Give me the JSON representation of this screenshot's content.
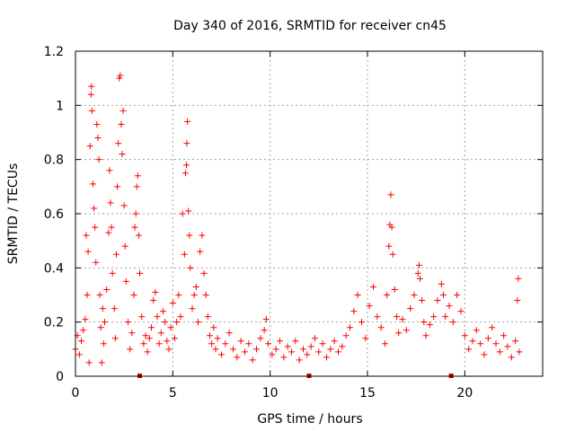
{
  "chart_data": {
    "type": "scatter",
    "title": "Day 340 of 2016, SRMTID for receiver cn45",
    "xlabel": "GPS time / hours",
    "ylabel": "SRMTID / TECUs",
    "xlim": [
      0,
      24
    ],
    "ylim": [
      0,
      1.2
    ],
    "xticks": [
      0,
      5,
      10,
      15,
      20
    ],
    "xtick_labels": [
      "0",
      "5",
      "10",
      "15",
      "20"
    ],
    "yticks": [
      0,
      0.2,
      0.4,
      0.6,
      0.8,
      1.0,
      1.2
    ],
    "ytick_labels": [
      "0",
      "0.2",
      "0.4",
      "0.6",
      "0.8",
      "1",
      "1.2"
    ],
    "grid": true,
    "marker": "+",
    "colors": {
      "points": "#ff0000",
      "gaps": "#cc0000",
      "grid": "#a0a0a0",
      "axis": "#000000"
    },
    "gap_markers_x": [
      3.3,
      12.0,
      19.3
    ],
    "series": [
      {
        "name": "cn45",
        "points": [
          [
            0.0,
            0.1
          ],
          [
            0.1,
            0.15
          ],
          [
            0.2,
            0.08
          ],
          [
            0.3,
            0.13
          ],
          [
            0.4,
            0.17
          ],
          [
            0.5,
            0.21
          ],
          [
            0.55,
            0.52
          ],
          [
            0.6,
            0.3
          ],
          [
            0.65,
            0.46
          ],
          [
            0.7,
            0.05
          ],
          [
            0.75,
            0.85
          ],
          [
            0.8,
            1.04
          ],
          [
            0.82,
            1.07
          ],
          [
            0.85,
            0.98
          ],
          [
            0.9,
            0.71
          ],
          [
            0.95,
            0.62
          ],
          [
            1.0,
            0.55
          ],
          [
            1.05,
            0.42
          ],
          [
            1.1,
            0.93
          ],
          [
            1.15,
            0.88
          ],
          [
            1.2,
            0.8
          ],
          [
            1.25,
            0.3
          ],
          [
            1.3,
            0.18
          ],
          [
            1.35,
            0.05
          ],
          [
            1.4,
            0.25
          ],
          [
            1.45,
            0.12
          ],
          [
            1.5,
            0.2
          ],
          [
            1.6,
            0.32
          ],
          [
            1.7,
            0.53
          ],
          [
            1.75,
            0.76
          ],
          [
            1.8,
            0.64
          ],
          [
            1.85,
            0.55
          ],
          [
            1.9,
            0.38
          ],
          [
            2.0,
            0.25
          ],
          [
            2.05,
            0.14
          ],
          [
            2.1,
            0.45
          ],
          [
            2.15,
            0.7
          ],
          [
            2.2,
            0.86
          ],
          [
            2.25,
            1.1
          ],
          [
            2.3,
            1.11
          ],
          [
            2.35,
            0.93
          ],
          [
            2.4,
            0.82
          ],
          [
            2.45,
            0.98
          ],
          [
            2.5,
            0.63
          ],
          [
            2.55,
            0.48
          ],
          [
            2.6,
            0.35
          ],
          [
            2.7,
            0.2
          ],
          [
            2.8,
            0.1
          ],
          [
            2.9,
            0.16
          ],
          [
            3.0,
            0.3
          ],
          [
            3.05,
            0.55
          ],
          [
            3.1,
            0.6
          ],
          [
            3.15,
            0.7
          ],
          [
            3.2,
            0.74
          ],
          [
            3.25,
            0.52
          ],
          [
            3.3,
            0.38
          ],
          [
            3.4,
            0.22
          ],
          [
            3.5,
            0.12
          ],
          [
            3.6,
            0.15
          ],
          [
            3.7,
            0.09
          ],
          [
            3.8,
            0.14
          ],
          [
            3.9,
            0.18
          ],
          [
            4.0,
            0.28
          ],
          [
            4.1,
            0.31
          ],
          [
            4.2,
            0.22
          ],
          [
            4.3,
            0.12
          ],
          [
            4.4,
            0.16
          ],
          [
            4.5,
            0.24
          ],
          [
            4.6,
            0.2
          ],
          [
            4.7,
            0.13
          ],
          [
            4.8,
            0.1
          ],
          [
            4.9,
            0.18
          ],
          [
            5.0,
            0.27
          ],
          [
            5.1,
            0.14
          ],
          [
            5.2,
            0.2
          ],
          [
            5.3,
            0.3
          ],
          [
            5.4,
            0.22
          ],
          [
            5.5,
            0.6
          ],
          [
            5.6,
            0.45
          ],
          [
            5.65,
            0.75
          ],
          [
            5.7,
            0.78
          ],
          [
            5.72,
            0.86
          ],
          [
            5.75,
            0.94
          ],
          [
            5.8,
            0.61
          ],
          [
            5.85,
            0.52
          ],
          [
            5.9,
            0.4
          ],
          [
            6.0,
            0.25
          ],
          [
            6.1,
            0.3
          ],
          [
            6.2,
            0.33
          ],
          [
            6.3,
            0.2
          ],
          [
            6.4,
            0.46
          ],
          [
            6.5,
            0.52
          ],
          [
            6.6,
            0.38
          ],
          [
            6.7,
            0.3
          ],
          [
            6.8,
            0.22
          ],
          [
            6.9,
            0.15
          ],
          [
            7.0,
            0.12
          ],
          [
            7.1,
            0.18
          ],
          [
            7.2,
            0.1
          ],
          [
            7.3,
            0.14
          ],
          [
            7.5,
            0.08
          ],
          [
            7.7,
            0.12
          ],
          [
            7.9,
            0.16
          ],
          [
            8.1,
            0.1
          ],
          [
            8.3,
            0.07
          ],
          [
            8.5,
            0.13
          ],
          [
            8.7,
            0.09
          ],
          [
            8.9,
            0.12
          ],
          [
            9.1,
            0.06
          ],
          [
            9.3,
            0.1
          ],
          [
            9.5,
            0.14
          ],
          [
            9.7,
            0.17
          ],
          [
            9.8,
            0.21
          ],
          [
            9.9,
            0.12
          ],
          [
            10.1,
            0.08
          ],
          [
            10.3,
            0.1
          ],
          [
            10.5,
            0.13
          ],
          [
            10.7,
            0.07
          ],
          [
            10.9,
            0.11
          ],
          [
            11.1,
            0.09
          ],
          [
            11.3,
            0.13
          ],
          [
            11.5,
            0.06
          ],
          [
            11.7,
            0.1
          ],
          [
            11.9,
            0.08
          ],
          [
            12.1,
            0.11
          ],
          [
            12.3,
            0.14
          ],
          [
            12.5,
            0.09
          ],
          [
            12.7,
            0.12
          ],
          [
            12.9,
            0.07
          ],
          [
            13.1,
            0.1
          ],
          [
            13.3,
            0.13
          ],
          [
            13.5,
            0.09
          ],
          [
            13.7,
            0.11
          ],
          [
            13.9,
            0.15
          ],
          [
            14.1,
            0.18
          ],
          [
            14.3,
            0.24
          ],
          [
            14.5,
            0.3
          ],
          [
            14.7,
            0.2
          ],
          [
            14.9,
            0.14
          ],
          [
            15.1,
            0.26
          ],
          [
            15.3,
            0.33
          ],
          [
            15.5,
            0.22
          ],
          [
            15.7,
            0.18
          ],
          [
            15.9,
            0.12
          ],
          [
            16.0,
            0.3
          ],
          [
            16.1,
            0.48
          ],
          [
            16.15,
            0.56
          ],
          [
            16.2,
            0.67
          ],
          [
            16.25,
            0.55
          ],
          [
            16.3,
            0.45
          ],
          [
            16.4,
            0.32
          ],
          [
            16.5,
            0.22
          ],
          [
            16.6,
            0.16
          ],
          [
            16.8,
            0.21
          ],
          [
            17.0,
            0.17
          ],
          [
            17.2,
            0.25
          ],
          [
            17.4,
            0.3
          ],
          [
            17.6,
            0.38
          ],
          [
            17.65,
            0.41
          ],
          [
            17.7,
            0.36
          ],
          [
            17.8,
            0.28
          ],
          [
            17.9,
            0.2
          ],
          [
            18.0,
            0.15
          ],
          [
            18.2,
            0.19
          ],
          [
            18.4,
            0.22
          ],
          [
            18.6,
            0.28
          ],
          [
            18.8,
            0.34
          ],
          [
            18.9,
            0.3
          ],
          [
            19.0,
            0.22
          ],
          [
            19.2,
            0.26
          ],
          [
            19.4,
            0.2
          ],
          [
            19.6,
            0.3
          ],
          [
            19.8,
            0.24
          ],
          [
            20.0,
            0.15
          ],
          [
            20.2,
            0.1
          ],
          [
            20.4,
            0.13
          ],
          [
            20.6,
            0.17
          ],
          [
            20.8,
            0.12
          ],
          [
            21.0,
            0.08
          ],
          [
            21.2,
            0.14
          ],
          [
            21.4,
            0.18
          ],
          [
            21.6,
            0.12
          ],
          [
            21.8,
            0.09
          ],
          [
            22.0,
            0.15
          ],
          [
            22.2,
            0.11
          ],
          [
            22.4,
            0.07
          ],
          [
            22.6,
            0.13
          ],
          [
            22.7,
            0.28
          ],
          [
            22.75,
            0.36
          ],
          [
            22.8,
            0.09
          ]
        ]
      }
    ]
  }
}
